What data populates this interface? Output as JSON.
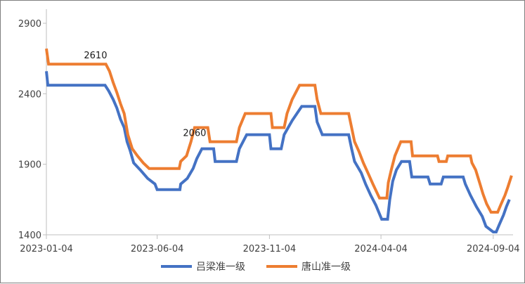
{
  "chart_data": {
    "type": "line",
    "title": "",
    "xlabel": "",
    "ylabel": "",
    "ylim": [
      1400,
      3000
    ],
    "yticks": [
      1400,
      1900,
      2400,
      2900
    ],
    "xticks": [
      "2023-01-04",
      "2023-06-04",
      "2023-11-04",
      "2024-04-04",
      "2024-09-04"
    ],
    "grid": false,
    "legend_position": "bottom",
    "annotations": [
      {
        "text": "2610",
        "x": "2023-03-12",
        "y": 2610,
        "series": "唐山准一级"
      },
      {
        "text": "2060",
        "x": "2023-07-25",
        "y": 2060,
        "series": "唐山准一级"
      }
    ],
    "series": [
      {
        "name": "吕梁准一级",
        "color": "#4472C4",
        "points": [
          [
            "2023-01-04",
            2560
          ],
          [
            "2023-01-06",
            2460
          ],
          [
            "2023-03-25",
            2460
          ],
          [
            "2023-03-30",
            2420
          ],
          [
            "2023-04-05",
            2360
          ],
          [
            "2023-04-10",
            2300
          ],
          [
            "2023-04-15",
            2220
          ],
          [
            "2023-04-20",
            2160
          ],
          [
            "2023-04-24",
            2060
          ],
          [
            "2023-04-28",
            2000
          ],
          [
            "2023-05-03",
            1910
          ],
          [
            "2023-05-12",
            1860
          ],
          [
            "2023-05-22",
            1800
          ],
          [
            "2023-06-01",
            1760
          ],
          [
            "2023-06-04",
            1720
          ],
          [
            "2023-07-05",
            1720
          ],
          [
            "2023-07-06",
            1760
          ],
          [
            "2023-07-15",
            1800
          ],
          [
            "2023-07-23",
            1870
          ],
          [
            "2023-07-28",
            1940
          ],
          [
            "2023-08-04",
            2010
          ],
          [
            "2023-08-20",
            2010
          ],
          [
            "2023-08-22",
            1920
          ],
          [
            "2023-09-20",
            1920
          ],
          [
            "2023-09-24",
            2010
          ],
          [
            "2023-10-04",
            2110
          ],
          [
            "2023-11-04",
            2110
          ],
          [
            "2023-11-06",
            2010
          ],
          [
            "2023-11-20",
            2010
          ],
          [
            "2023-11-24",
            2110
          ],
          [
            "2023-12-05",
            2210
          ],
          [
            "2023-12-18",
            2310
          ],
          [
            "2024-01-05",
            2310
          ],
          [
            "2024-01-08",
            2200
          ],
          [
            "2024-01-15",
            2110
          ],
          [
            "2024-02-20",
            2110
          ],
          [
            "2024-02-24",
            2010
          ],
          [
            "2024-02-28",
            1920
          ],
          [
            "2024-03-08",
            1840
          ],
          [
            "2024-03-14",
            1760
          ],
          [
            "2024-03-21",
            1680
          ],
          [
            "2024-03-28",
            1610
          ],
          [
            "2024-04-05",
            1510
          ],
          [
            "2024-04-13",
            1510
          ],
          [
            "2024-04-16",
            1650
          ],
          [
            "2024-04-20",
            1780
          ],
          [
            "2024-04-25",
            1860
          ],
          [
            "2024-05-02",
            1920
          ],
          [
            "2024-05-13",
            1920
          ],
          [
            "2024-05-16",
            1810
          ],
          [
            "2024-06-07",
            1810
          ],
          [
            "2024-06-10",
            1760
          ],
          [
            "2024-06-25",
            1760
          ],
          [
            "2024-06-28",
            1810
          ],
          [
            "2024-07-25",
            1810
          ],
          [
            "2024-07-28",
            1760
          ],
          [
            "2024-08-04",
            1680
          ],
          [
            "2024-08-12",
            1600
          ],
          [
            "2024-08-20",
            1530
          ],
          [
            "2024-08-25",
            1460
          ],
          [
            "2024-09-04",
            1420
          ],
          [
            "2024-09-08",
            1420
          ],
          [
            "2024-09-12",
            1470
          ],
          [
            "2024-09-18",
            1540
          ],
          [
            "2024-09-22",
            1600
          ],
          [
            "2024-09-26",
            1650
          ]
        ]
      },
      {
        "name": "唐山准一级",
        "color": "#ED7D31",
        "points": [
          [
            "2023-01-04",
            2720
          ],
          [
            "2023-01-07",
            2610
          ],
          [
            "2023-03-26",
            2610
          ],
          [
            "2023-03-31",
            2560
          ],
          [
            "2023-04-05",
            2480
          ],
          [
            "2023-04-10",
            2410
          ],
          [
            "2023-04-15",
            2330
          ],
          [
            "2023-04-20",
            2260
          ],
          [
            "2023-04-25",
            2110
          ],
          [
            "2023-05-01",
            2010
          ],
          [
            "2023-05-08",
            1960
          ],
          [
            "2023-05-16",
            1910
          ],
          [
            "2023-05-24",
            1870
          ],
          [
            "2023-07-04",
            1870
          ],
          [
            "2023-07-06",
            1920
          ],
          [
            "2023-07-14",
            1960
          ],
          [
            "2023-07-20",
            2060
          ],
          [
            "2023-07-25",
            2160
          ],
          [
            "2023-08-12",
            2160
          ],
          [
            "2023-08-15",
            2060
          ],
          [
            "2023-09-20",
            2060
          ],
          [
            "2023-09-24",
            2160
          ],
          [
            "2023-10-02",
            2260
          ],
          [
            "2023-11-06",
            2260
          ],
          [
            "2023-11-08",
            2160
          ],
          [
            "2023-11-24",
            2160
          ],
          [
            "2023-11-28",
            2260
          ],
          [
            "2023-12-05",
            2360
          ],
          [
            "2023-12-15",
            2460
          ],
          [
            "2024-01-05",
            2460
          ],
          [
            "2024-01-08",
            2360
          ],
          [
            "2024-01-13",
            2260
          ],
          [
            "2024-02-20",
            2260
          ],
          [
            "2024-02-24",
            2160
          ],
          [
            "2024-02-28",
            2060
          ],
          [
            "2024-03-05",
            1990
          ],
          [
            "2024-03-11",
            1910
          ],
          [
            "2024-03-18",
            1830
          ],
          [
            "2024-03-24",
            1760
          ],
          [
            "2024-04-02",
            1660
          ],
          [
            "2024-04-12",
            1660
          ],
          [
            "2024-04-14",
            1770
          ],
          [
            "2024-04-18",
            1860
          ],
          [
            "2024-04-23",
            1960
          ],
          [
            "2024-05-01",
            2060
          ],
          [
            "2024-05-15",
            2060
          ],
          [
            "2024-05-17",
            1960
          ],
          [
            "2024-06-20",
            1960
          ],
          [
            "2024-06-22",
            1920
          ],
          [
            "2024-07-02",
            1920
          ],
          [
            "2024-07-04",
            1960
          ],
          [
            "2024-08-04",
            1960
          ],
          [
            "2024-08-06",
            1910
          ],
          [
            "2024-08-11",
            1860
          ],
          [
            "2024-08-17",
            1760
          ],
          [
            "2024-08-21",
            1690
          ],
          [
            "2024-08-26",
            1620
          ],
          [
            "2024-09-01",
            1560
          ],
          [
            "2024-09-10",
            1560
          ],
          [
            "2024-09-14",
            1610
          ],
          [
            "2024-09-20",
            1680
          ],
          [
            "2024-09-24",
            1740
          ],
          [
            "2024-09-29",
            1820
          ]
        ]
      }
    ]
  }
}
